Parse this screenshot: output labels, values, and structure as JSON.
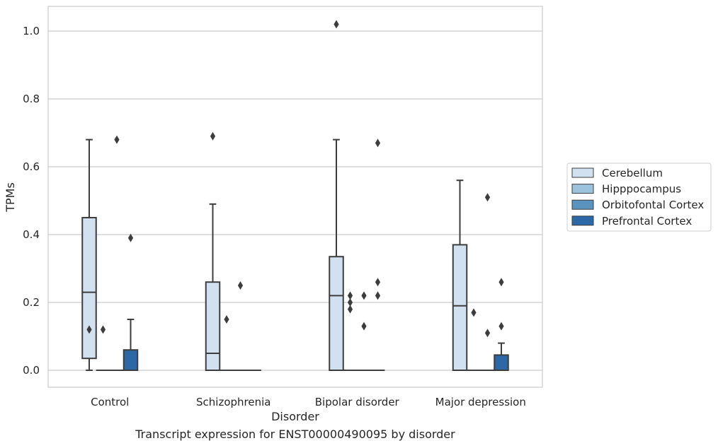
{
  "caption": "Transcript expression for ENST00000490095 by disorder",
  "chart_data": {
    "type": "box",
    "xlabel": "Disorder",
    "ylabel": "TPMs",
    "ylim": [
      -0.05,
      1.07
    ],
    "yticks": [
      0.0,
      0.2,
      0.4,
      0.6,
      0.8,
      1.0
    ],
    "ytick_labels": [
      "0.0",
      "0.2",
      "0.4",
      "0.6",
      "0.8",
      "1.0"
    ],
    "grid": "horizontal",
    "legend_position": "center-right",
    "categories": [
      "Control",
      "Schizophrenia",
      "Bipolar disorder",
      "Major depression"
    ],
    "series": [
      {
        "name": "Cerebellum",
        "color": "#d2e1f0",
        "boxes": [
          {
            "whislo": 0.0,
            "q1": 0.035,
            "med": 0.23,
            "q3": 0.45,
            "whishi": 0.68,
            "fliers": [
              0.12
            ]
          },
          {
            "whislo": 0.0,
            "q1": 0.0,
            "med": 0.05,
            "q3": 0.26,
            "whishi": 0.49,
            "fliers": [
              0.69
            ]
          },
          {
            "whislo": 0.0,
            "q1": 0.0,
            "med": 0.22,
            "q3": 0.335,
            "whishi": 0.68,
            "fliers": [
              1.02
            ]
          },
          {
            "whislo": 0.0,
            "q1": 0.0,
            "med": 0.19,
            "q3": 0.37,
            "whishi": 0.56,
            "fliers": []
          }
        ]
      },
      {
        "name": "Hipppocampus",
        "color": "#9dc2dd",
        "boxes": [
          {
            "whislo": 0.0,
            "q1": 0.0,
            "med": 0.0,
            "q3": 0.0,
            "whishi": 0.0,
            "fliers": [
              0.12
            ]
          },
          {
            "whislo": 0.0,
            "q1": 0.0,
            "med": 0.0,
            "q3": 0.0,
            "whishi": 0.0,
            "fliers": [
              0.15
            ]
          },
          {
            "whislo": 0.0,
            "q1": 0.0,
            "med": 0.0,
            "q3": 0.0,
            "whishi": 0.0,
            "fliers": [
              0.18,
              0.2,
              0.22
            ]
          },
          {
            "whislo": 0.0,
            "q1": 0.0,
            "med": 0.0,
            "q3": 0.0,
            "whishi": 0.0,
            "fliers": [
              0.17
            ]
          }
        ]
      },
      {
        "name": "Orbitofontal Cortex",
        "color": "#5b93bf",
        "boxes": [
          {
            "whislo": 0.0,
            "q1": 0.0,
            "med": 0.0,
            "q3": 0.0,
            "whishi": 0.0,
            "fliers": [
              0.68
            ]
          },
          {
            "whislo": 0.0,
            "q1": 0.0,
            "med": 0.0,
            "q3": 0.0,
            "whishi": 0.0,
            "fliers": [
              0.25
            ]
          },
          {
            "whislo": 0.0,
            "q1": 0.0,
            "med": 0.0,
            "q3": 0.0,
            "whishi": 0.0,
            "fliers": [
              0.13,
              0.22
            ]
          },
          {
            "whislo": 0.0,
            "q1": 0.0,
            "med": 0.0,
            "q3": 0.0,
            "whishi": 0.0,
            "fliers": [
              0.11,
              0.51
            ]
          }
        ]
      },
      {
        "name": "Prefrontal Cortex",
        "color": "#2b68a5",
        "boxes": [
          {
            "whislo": 0.0,
            "q1": 0.0,
            "med": 0.0,
            "q3": 0.06,
            "whishi": 0.15,
            "fliers": [
              0.39
            ]
          },
          {
            "whislo": 0.0,
            "q1": 0.0,
            "med": 0.0,
            "q3": 0.0,
            "whishi": 0.0,
            "fliers": []
          },
          {
            "whislo": 0.0,
            "q1": 0.0,
            "med": 0.0,
            "q3": 0.0,
            "whishi": 0.0,
            "fliers": [
              0.22,
              0.26,
              0.67
            ]
          },
          {
            "whislo": 0.0,
            "q1": 0.0,
            "med": 0.0,
            "q3": 0.045,
            "whishi": 0.08,
            "fliers": [
              0.13,
              0.26
            ]
          }
        ]
      }
    ]
  }
}
